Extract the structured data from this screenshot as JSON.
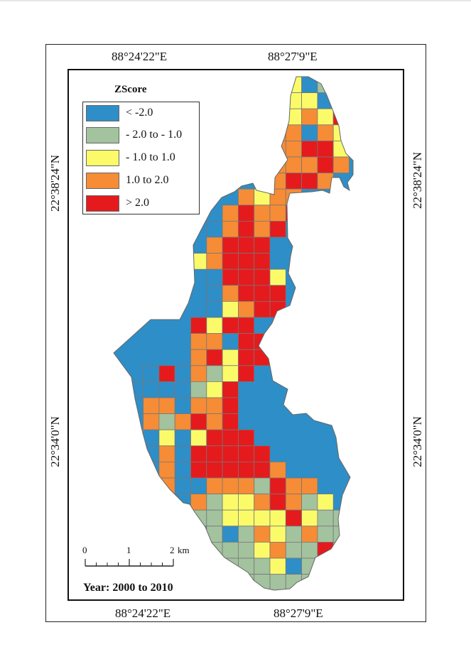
{
  "map": {
    "longitude_labels": [
      "88°24'22\"E",
      "88°27'9\"E"
    ],
    "latitude_labels": [
      "22°38'24\"N",
      "22°34'0\"N"
    ],
    "legend": {
      "title": "ZScore",
      "classes": [
        {
          "label": "< -2.0",
          "color": "#2e8ec7"
        },
        {
          "label": "- 2.0 to - 1.0",
          "color": "#a3c29e"
        },
        {
          "label": "- 1.0 to 1.0",
          "color": "#fbfb6a"
        },
        {
          "label": "1.0 to 2.0",
          "color": "#f68c35"
        },
        {
          "label": "> 2.0",
          "color": "#e51a1d"
        }
      ]
    },
    "scale_bar": {
      "labels": [
        "0",
        "1",
        "2"
      ],
      "unit": "km"
    },
    "year_label": "Year: 2000 to 2010"
  }
}
